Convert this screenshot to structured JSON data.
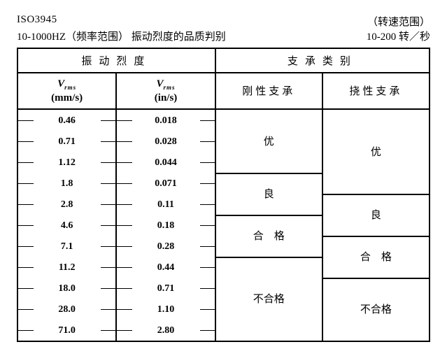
{
  "header": {
    "iso": "ISO3945",
    "left_line": "10-1000HZ（频率范围）  振动烈度的品质判别",
    "right_top": "（转速范围）",
    "right_bottom": "10-200 转／秒"
  },
  "top_headers": {
    "intensity": "振动烈度",
    "support": "支承类别"
  },
  "sub_headers": {
    "mms": {
      "sym": "V",
      "sub": "rms",
      "unit": "(mm/s)"
    },
    "ins": {
      "sym": "V",
      "sub": "rms",
      "unit": "(in/s)"
    },
    "rigid": "刚性支承",
    "flex": "挠性支承"
  },
  "scale_mms": [
    "0.46",
    "0.71",
    "1.12",
    "1.8",
    "2.8",
    "4.6",
    "7.1",
    "11.2",
    "18.0",
    "28.0",
    "71.0"
  ],
  "scale_ins": [
    "0.018",
    "0.028",
    "0.044",
    "0.071",
    "0.11",
    "0.18",
    "0.28",
    "0.44",
    "0.71",
    "1.10",
    "2.80"
  ],
  "grades_rigid": [
    {
      "label": "优",
      "from": 0,
      "to": 3
    },
    {
      "label": "良",
      "from": 3,
      "to": 5
    },
    {
      "label": "合　格",
      "from": 5,
      "to": 7
    },
    {
      "label": "不合格",
      "from": 7,
      "to": 11
    }
  ],
  "grades_flex": [
    {
      "label": "优",
      "from": 0,
      "to": 4
    },
    {
      "label": "良",
      "from": 4,
      "to": 6
    },
    {
      "label": "合　格",
      "from": 6,
      "to": 8
    },
    {
      "label": "不合格",
      "from": 8,
      "to": 11
    }
  ]
}
